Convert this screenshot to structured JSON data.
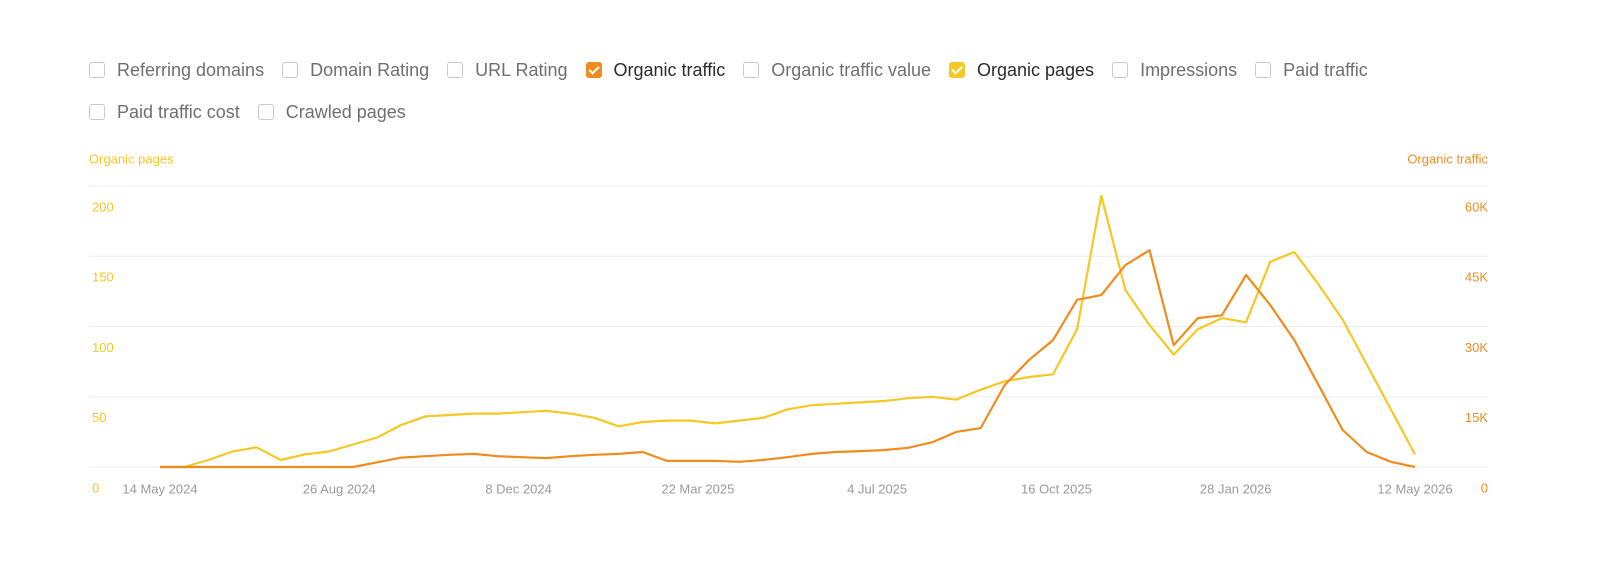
{
  "controls": {
    "checkboxes": [
      {
        "label": "Referring domains",
        "checked": false
      },
      {
        "label": "Domain Rating",
        "checked": false
      },
      {
        "label": "URL Rating",
        "checked": false
      },
      {
        "label": "Organic traffic",
        "checked": true,
        "color": "#f08c1e"
      },
      {
        "label": "Organic traffic value",
        "checked": false
      },
      {
        "label": "Organic pages",
        "checked": true,
        "color": "#f5c823"
      },
      {
        "label": "Impressions",
        "checked": false
      },
      {
        "label": "Paid traffic",
        "checked": false
      },
      {
        "label": "Paid traffic cost",
        "checked": false
      },
      {
        "label": "Crawled pages",
        "checked": false
      }
    ]
  },
  "chart_data": {
    "type": "line",
    "ylabel": "Organic pages",
    "y2label": "Organic traffic",
    "x": [
      "2024-05-14",
      "2024-05-28",
      "2024-06-11",
      "2024-06-25",
      "2024-07-09",
      "2024-07-23",
      "2024-08-06",
      "2024-08-20",
      "2024-09-03",
      "2024-09-17",
      "2024-10-01",
      "2024-10-15",
      "2024-10-29",
      "2024-11-12",
      "2024-11-26",
      "2024-12-10",
      "2024-12-24",
      "2025-01-07",
      "2025-01-21",
      "2025-02-04",
      "2025-02-18",
      "2025-03-04",
      "2025-03-18",
      "2025-04-01",
      "2025-04-15",
      "2025-04-29",
      "2025-05-13",
      "2025-05-27",
      "2025-06-10",
      "2025-06-24",
      "2025-07-08",
      "2025-07-22",
      "2025-08-05",
      "2025-08-19",
      "2025-09-02",
      "2025-09-16",
      "2025-09-30",
      "2025-10-14",
      "2025-10-28",
      "2025-11-11",
      "2025-11-25",
      "2025-12-09",
      "2025-12-23",
      "2026-01-06",
      "2026-01-20",
      "2026-02-03",
      "2026-02-17",
      "2026-03-03",
      "2026-03-17",
      "2026-03-31",
      "2026-04-14",
      "2026-04-28",
      "2026-05-12"
    ],
    "series": [
      {
        "name": "Organic pages",
        "color": "#f5c823",
        "axis": "y",
        "values": [
          0,
          0,
          5,
          11,
          14,
          5,
          9,
          11,
          16,
          21,
          30,
          36,
          37,
          38,
          38,
          39,
          40,
          38,
          35,
          29,
          32,
          33,
          33,
          31,
          33,
          35,
          41,
          44,
          45,
          46,
          47,
          49,
          50,
          48,
          55,
          61,
          64,
          66,
          98,
          193,
          126,
          101,
          80,
          98,
          106,
          103,
          146,
          153,
          130,
          105,
          73,
          41,
          9
        ]
      },
      {
        "name": "Organic traffic",
        "color": "#f08c1e",
        "axis": "y2",
        "values": [
          0,
          0,
          0,
          0,
          0,
          0,
          0,
          0,
          0,
          1000,
          2000,
          2300,
          2600,
          2800,
          2300,
          2100,
          1900,
          2300,
          2600,
          2800,
          3200,
          1300,
          1300,
          1300,
          1100,
          1500,
          2100,
          2800,
          3200,
          3400,
          3600,
          4100,
          5300,
          7500,
          8300,
          17500,
          22800,
          27100,
          35700,
          36700,
          43100,
          46300,
          26000,
          31800,
          32400,
          41000,
          34600,
          27100,
          17500,
          7900,
          3200,
          1100,
          0
        ]
      }
    ],
    "xlim": [
      "2024-05-14",
      "2026-05-12"
    ],
    "xticks": [
      {
        "value": "2024-05-14",
        "label": "14 May 2024"
      },
      {
        "value": "2024-08-26",
        "label": "26 Aug 2024"
      },
      {
        "value": "2024-12-08",
        "label": "8 Dec 2024"
      },
      {
        "value": "2025-03-22",
        "label": "22 Mar 2025"
      },
      {
        "value": "2025-07-04",
        "label": "4 Jul 2025"
      },
      {
        "value": "2025-10-16",
        "label": "16 Oct 2025"
      },
      {
        "value": "2026-01-28",
        "label": "28 Jan 2026"
      },
      {
        "value": "2026-05-12",
        "label": "12 May 2026"
      }
    ],
    "ylim": [
      0,
      200
    ],
    "yticks": [
      0,
      50,
      100,
      150,
      200
    ],
    "y2lim": [
      0,
      60000
    ],
    "y2ticks": [
      0,
      {
        "value": 15000,
        "label": "15K"
      },
      {
        "value": 30000,
        "label": "30K"
      },
      {
        "value": 45000,
        "label": "45K"
      },
      {
        "value": 60000,
        "label": "60K"
      }
    ],
    "grid": true
  }
}
